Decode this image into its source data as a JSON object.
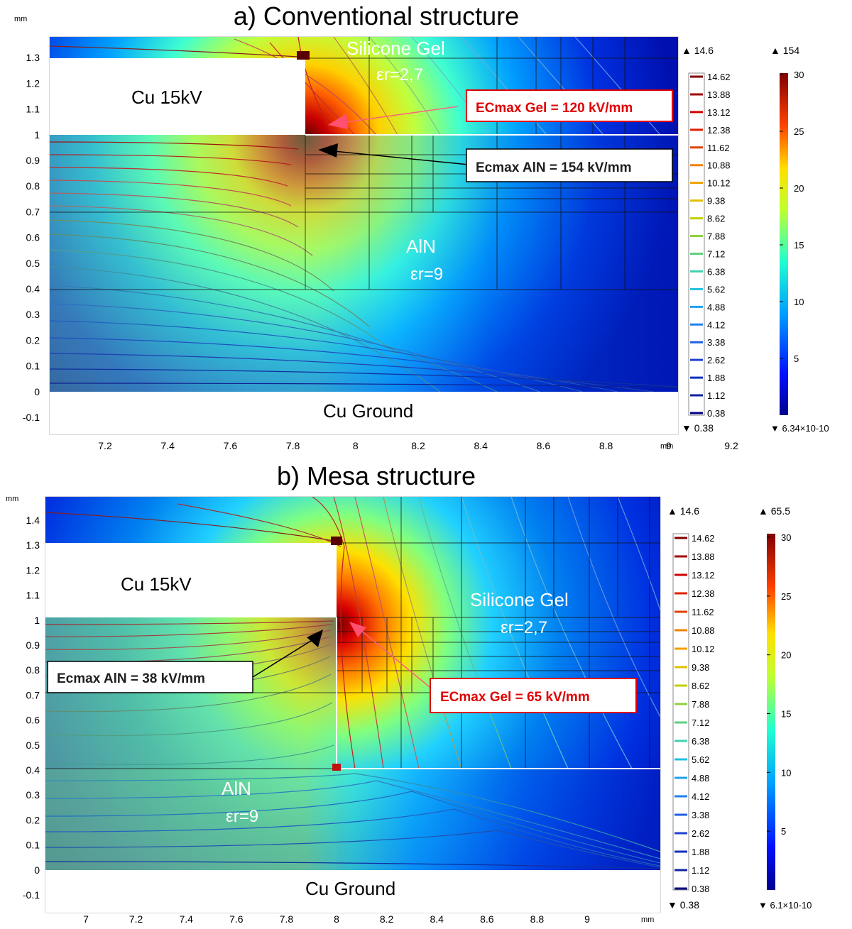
{
  "panels": [
    {
      "title": "a) Conventional structure",
      "axis_unit": "mm",
      "x_ticks": [
        "7.2",
        "7.4",
        "7.6",
        "7.8",
        "8",
        "8.2",
        "8.4",
        "8.6",
        "8.8",
        "9",
        "9.2"
      ],
      "y_ticks": [
        "-0.1",
        "0",
        "0.1",
        "0.2",
        "0.3",
        "0.4",
        "0.5",
        "0.6",
        "0.7",
        "0.8",
        "0.9",
        "1",
        "1.1",
        "1.2",
        "1.3"
      ],
      "labels": {
        "electrode": "Cu 15kV",
        "ground": "Cu Ground",
        "gel": "Silicone Gel",
        "gel_eps": "εr=2,7",
        "aln": "AlN",
        "aln_eps": "εr=9"
      },
      "callouts": {
        "gel": "ECmax Gel = 120 kV/mm",
        "aln": "Ecmax AlN = 154 kV/mm"
      },
      "contour_legend": {
        "max": "14.6",
        "min": "0.38",
        "levels": [
          "14.62",
          "13.88",
          "13.12",
          "12.38",
          "11.62",
          "10.88",
          "10.12",
          "9.38",
          "8.62",
          "7.88",
          "7.12",
          "6.38",
          "5.62",
          "4.88",
          "4.12",
          "3.38",
          "2.62",
          "1.88",
          "1.12",
          "0.38"
        ]
      },
      "color_legend": {
        "max": "154",
        "min": "6.34×10-10",
        "ticks": [
          "30",
          "25",
          "20",
          "15",
          "10",
          "5"
        ]
      }
    },
    {
      "title": "b) Mesa structure",
      "axis_unit": "mm",
      "x_ticks": [
        "7",
        "7.2",
        "7.4",
        "7.6",
        "7.8",
        "8",
        "8.2",
        "8.4",
        "8.6",
        "8.8",
        "9"
      ],
      "y_ticks": [
        "-0.1",
        "0",
        "0.1",
        "0.2",
        "0.3",
        "0.4",
        "0.5",
        "0.6",
        "0.7",
        "0.8",
        "0.9",
        "1",
        "1.1",
        "1.2",
        "1.3",
        "1.4"
      ],
      "labels": {
        "electrode": "Cu 15kV",
        "ground": "Cu Ground",
        "gel": "Silicone Gel",
        "gel_eps": "εr=2,7",
        "aln": "AlN",
        "aln_eps": "εr=9"
      },
      "callouts": {
        "gel": "ECmax Gel = 65 kV/mm",
        "aln": "Ecmax AlN = 38 kV/mm"
      },
      "contour_legend": {
        "max": "14.6",
        "min": "0.38",
        "levels": [
          "14.62",
          "13.88",
          "13.12",
          "12.38",
          "11.62",
          "10.88",
          "10.12",
          "9.38",
          "8.62",
          "7.88",
          "7.12",
          "6.38",
          "5.62",
          "4.88",
          "4.12",
          "3.38",
          "2.62",
          "1.88",
          "1.12",
          "0.38"
        ]
      },
      "color_legend": {
        "max": "65.5",
        "min": "6.1×10-10",
        "ticks": [
          "30",
          "25",
          "20",
          "15",
          "10",
          "5"
        ]
      }
    }
  ],
  "colors": {
    "callout_red": "#e00000",
    "low_field": "#0000c8",
    "high_field": "#8b0000"
  }
}
